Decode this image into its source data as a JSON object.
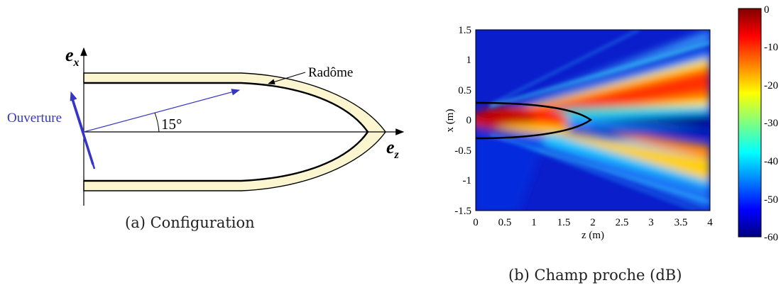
{
  "figure_a": {
    "caption": "(a) Configuration",
    "axis_x_label": "e",
    "axis_x_sub": "x",
    "axis_z_label": "e",
    "axis_z_sub": "z",
    "radome_label": "Radôme",
    "aperture_label": "Ouverture",
    "angle_label": "15°",
    "colors": {
      "radome_fill": "#fbf6cf",
      "aperture": "#3535c8"
    }
  },
  "figure_b": {
    "caption": "(b) Champ proche (dB)",
    "xlabel": "z (m)",
    "ylabel": "x (m)",
    "x_ticks": [
      "0",
      "0.5",
      "1",
      "1.5",
      "2",
      "2.5",
      "3",
      "3.5",
      "4"
    ],
    "y_ticks": [
      "1.5",
      "1",
      "0.5",
      "0",
      "-0.5",
      "-1",
      "-1.5"
    ],
    "colorbar_ticks": [
      "0",
      "-10",
      "-20",
      "-30",
      "-40",
      "-50",
      "-60"
    ]
  },
  "chart_data": {
    "type": "heatmap",
    "xlabel": "z (m)",
    "ylabel": "x (m)",
    "xlim": [
      0,
      4
    ],
    "ylim": [
      -1.5,
      1.5
    ],
    "colorbar": {
      "range": [
        -60,
        0
      ],
      "colormap": "jet"
    },
    "radome_outline": {
      "apex_z": 2,
      "half_width_at_z0": 0.3
    },
    "beam_angle_deg": 15
  }
}
